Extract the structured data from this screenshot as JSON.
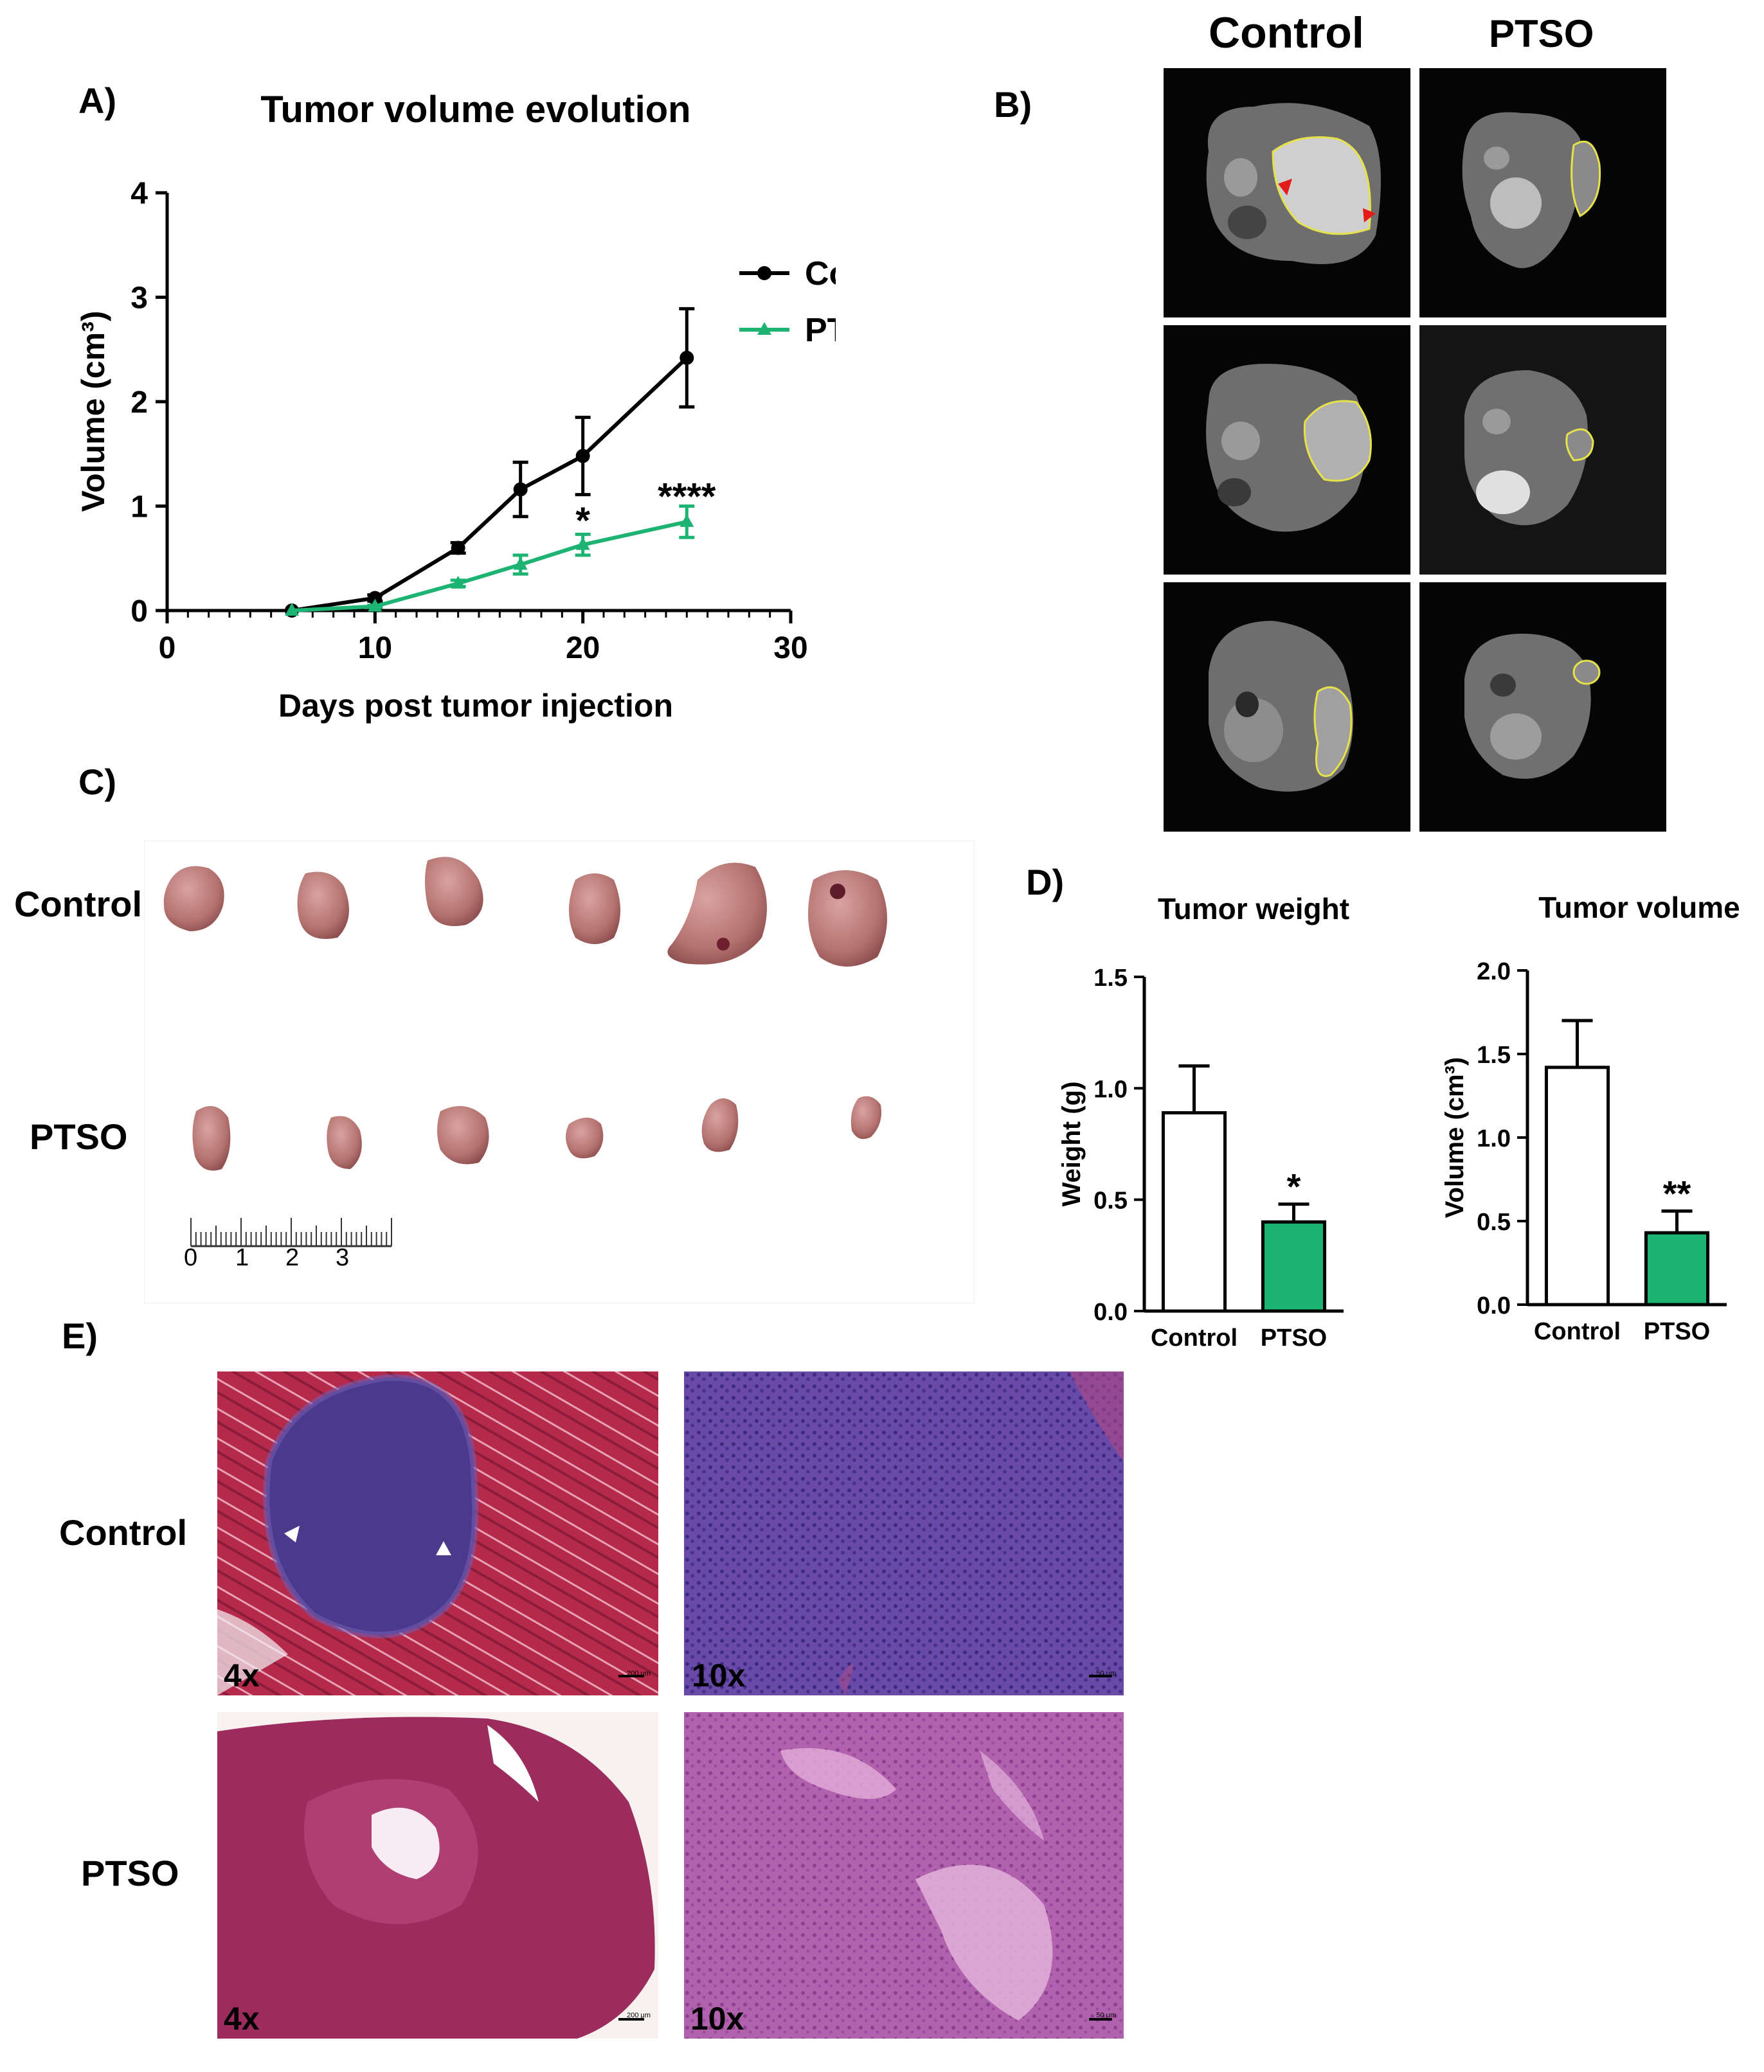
{
  "panels": {
    "A": "A)",
    "B": "B)",
    "C": "C)",
    "D": "D)",
    "E": "E)"
  },
  "panelA": {
    "chart_data": {
      "type": "line",
      "title": "Tumor volume evolution",
      "xlabel": "Days post tumor injection",
      "ylabel": "Volume (cm³)",
      "xlim": [
        0,
        30
      ],
      "ylim": [
        0,
        4
      ],
      "xticks": [
        "0",
        "10",
        "20",
        "30"
      ],
      "yticks": [
        "0",
        "1",
        "2",
        "3",
        "4"
      ],
      "legend": "right",
      "series": [
        {
          "name": "Control",
          "color": "#000000",
          "marker": "circle",
          "x": [
            6,
            10,
            14,
            17,
            20,
            25
          ],
          "y": [
            0.0,
            0.12,
            0.6,
            1.16,
            1.48,
            2.42
          ],
          "err": [
            0.0,
            0.03,
            0.05,
            0.26,
            0.37,
            0.47
          ]
        },
        {
          "name": "PTSO",
          "color": "#1DB373",
          "marker": "triangle",
          "x": [
            6,
            10,
            14,
            17,
            20,
            25
          ],
          "y": [
            0.0,
            0.04,
            0.26,
            0.44,
            0.63,
            0.85
          ],
          "err": [
            0.0,
            0.01,
            0.03,
            0.09,
            0.1,
            0.15
          ]
        }
      ],
      "annotations": [
        {
          "text": "*",
          "x": 20,
          "y": 0.8
        },
        {
          "text": "****",
          "x": 25,
          "y": 1.03
        }
      ]
    }
  },
  "panelB": {
    "col_control": "Control",
    "col_ptso": "PTSO"
  },
  "panelC": {
    "row_control": "Control",
    "row_ptso": "PTSO",
    "ruler_labels": [
      "0",
      "1",
      "2",
      "3"
    ]
  },
  "panelD": {
    "chart_data": [
      {
        "type": "bar",
        "title": "Tumor weight",
        "ylabel": "Weight (g)",
        "categories": [
          "Control",
          "PTSO"
        ],
        "values": [
          0.89,
          0.4
        ],
        "err": [
          0.21,
          0.08
        ],
        "colors": [
          "#ffffff",
          "#1DB373"
        ],
        "ylim": [
          0,
          1.5
        ],
        "yticks": [
          "0.0",
          "0.5",
          "1.0",
          "1.5"
        ],
        "annotations": [
          {
            "category": "PTSO",
            "text": "*"
          }
        ]
      },
      {
        "type": "bar",
        "title": "Tumor volume",
        "ylabel": "Volume (cm³)",
        "categories": [
          "Control",
          "PTSO"
        ],
        "values": [
          1.42,
          0.43
        ],
        "err": [
          0.28,
          0.13
        ],
        "colors": [
          "#ffffff",
          "#1DB373"
        ],
        "ylim": [
          0,
          2.0
        ],
        "yticks": [
          "0.0",
          "0.5",
          "1.0",
          "1.5",
          "2.0"
        ],
        "annotations": [
          {
            "category": "PTSO",
            "text": "**"
          }
        ]
      }
    ]
  },
  "panelE": {
    "row_control": "Control",
    "row_ptso": "PTSO",
    "mag_4x": "4x",
    "mag_10x": "10x",
    "scale_200": "200 μm",
    "scale_50": "50 μm"
  }
}
